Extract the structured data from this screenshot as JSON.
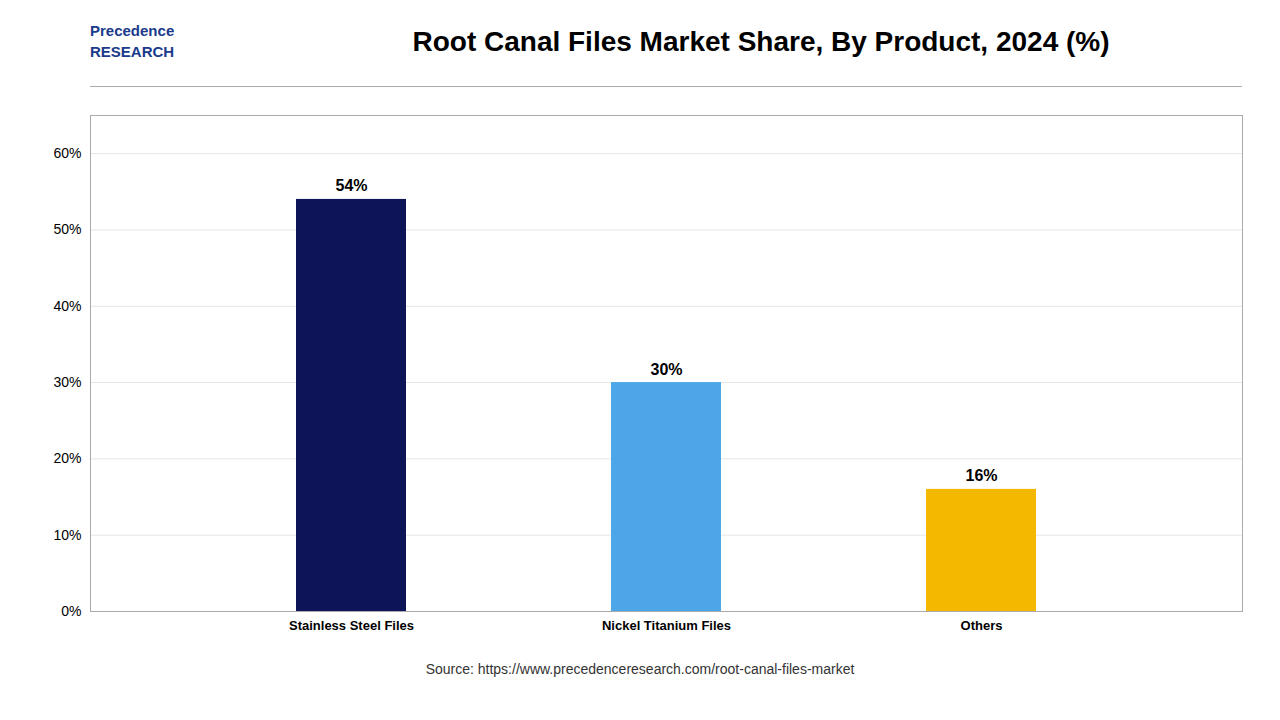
{
  "chart_data": {
    "type": "bar",
    "title": "Root Canal Files Market Share, By Product, 2024 (%)",
    "categories": [
      "Stainless Steel Files",
      "Nickel Titanium Files",
      "Others"
    ],
    "values": [
      54,
      30,
      16
    ],
    "value_labels": [
      "54%",
      "30%",
      "16%"
    ],
    "data_labels": true,
    "colors": [
      "#0d1457",
      "#4da6e8",
      "#f5b800"
    ],
    "ylim": [
      0,
      65
    ],
    "yticks": [
      {
        "value": 0,
        "label": "0%"
      },
      {
        "value": 10,
        "label": "10%"
      },
      {
        "value": 20,
        "label": "20%"
      },
      {
        "value": 30,
        "label": "30%"
      },
      {
        "value": 40,
        "label": "40%"
      },
      {
        "value": 50,
        "label": "50%"
      },
      {
        "value": 60,
        "label": "60%"
      }
    ],
    "grid": true,
    "annotations": [
      "Precedence",
      "RESEARCH",
      "Source: https://www.precedenceresearch.com/root-canal-files-market"
    ]
  }
}
